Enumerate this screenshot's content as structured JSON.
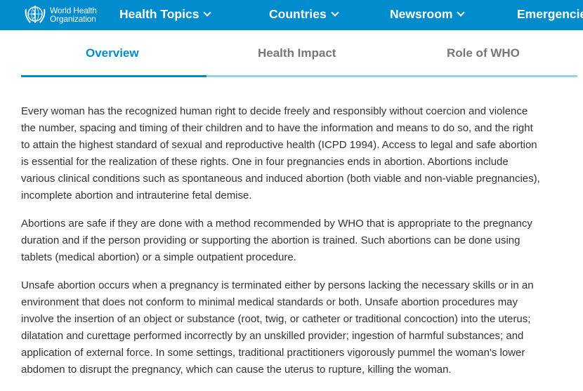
{
  "header": {
    "logo_line1": "World Health",
    "logo_line2": "Organization",
    "nav": [
      "Health Topics",
      "Countries",
      "Newsroom",
      "Emergencies"
    ],
    "brand_color": "#008bcc"
  },
  "tabs": [
    {
      "label": "Overview",
      "active": true
    },
    {
      "label": "Health Impact",
      "active": false
    },
    {
      "label": "Role of WHO",
      "active": false
    }
  ],
  "paragraphs": [
    [
      "Every woman has the recognized human right to decide freely and responsibly without coercion and violence",
      "the number, spacing and timing of their children and to have the information and means to do so, and the right",
      "to attain the highest standard of sexual and reproductive health (ICPD 1994). Access to legal and safe abortion",
      "is essential for the realization of these rights. One in four pregnancies ends in abortion. Abortions include",
      "various clinical conditions such as spontaneous and induced abortion (both viable and non-viable pregnancies),",
      "incomplete abortion and intrauterine fetal demise."
    ],
    [
      "Abortions are safe if they are done with a method recommended by WHO that is appropriate to the pregnancy",
      "duration and if the person providing or supporting the abortion is trained. Such abortions can be done using",
      "tablets (medical abortion) or a simple outpatient procedure."
    ],
    [
      "Unsafe abortion occurs when a pregnancy is terminated either by persons lacking the necessary skills or in an",
      "environment that does not conform to minimal medical standards or both. Unsafe abortion procedures may",
      "involve the insertion of an object or substance (root, twig, or catheter or traditional concoction) into the uterus;",
      "dilatation and curettage performed incorrectly by an unskilled provider; ingestion of harmful substances; and",
      "application of external force. In some settings, traditional practitioners vigorously pummel the woman's lower",
      "abdomen to disrupt the pregnancy, which can cause the uterus to rupture, killing the woman."
    ]
  ]
}
